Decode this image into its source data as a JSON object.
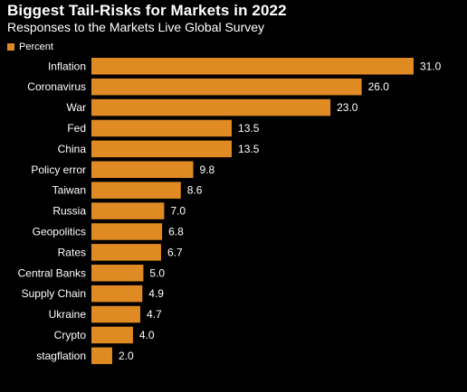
{
  "header": {
    "title": "Biggest Tail-Risks for Markets in 2022",
    "subtitle": "Responses to the Markets Live Global Survey"
  },
  "legend": {
    "label": "Percent"
  },
  "colors": {
    "background": "#000000",
    "bar": "#e08a24",
    "text": "#ffffff"
  },
  "chart_data": {
    "type": "bar",
    "orientation": "horizontal",
    "title": "Biggest Tail-Risks for Markets in 2022",
    "subtitle": "Responses to the Markets Live Global Survey",
    "categories": [
      "Inflation",
      "Coronavirus",
      "War",
      "Fed",
      "China",
      "Policy error",
      "Taiwan",
      "Russia",
      "Geopolitics",
      "Rates",
      "Central Banks",
      "Supply Chain",
      "Ukraine",
      "Crypto",
      "stagflation"
    ],
    "series": [
      {
        "name": "Percent",
        "values": [
          31.0,
          26.0,
          23.0,
          13.5,
          13.5,
          9.8,
          8.6,
          7.0,
          6.8,
          6.7,
          5.0,
          4.9,
          4.7,
          4.0,
          2.0
        ]
      }
    ],
    "value_labels": [
      "31.0",
      "26.0",
      "23.0",
      "13.5",
      "13.5",
      "9.8",
      "8.6",
      "7.0",
      "6.8",
      "6.7",
      "5.0",
      "4.9",
      "4.7",
      "4.0",
      "2.0"
    ],
    "xlim": [
      0,
      31
    ],
    "grid": false,
    "legend_position": "top-left"
  }
}
